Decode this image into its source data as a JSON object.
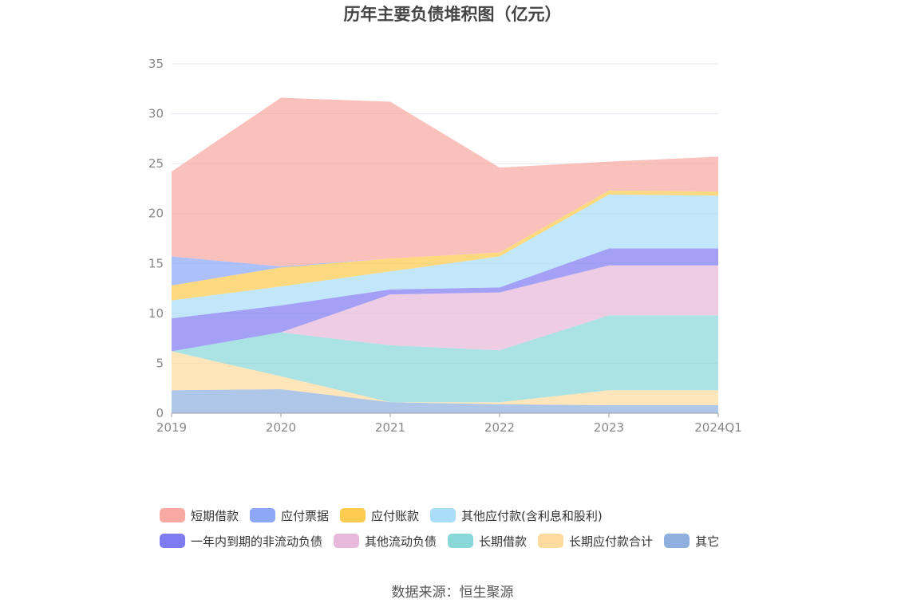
{
  "chart_data": {
    "type": "area",
    "stacked": true,
    "title": "历年主要负债堆积图（亿元）",
    "categories": [
      "2019",
      "2020",
      "2021",
      "2022",
      "2023",
      "2024Q1"
    ],
    "ylim": [
      0,
      35
    ],
    "yticks": [
      "0",
      "5",
      "10",
      "15",
      "20",
      "25",
      "30",
      "35"
    ],
    "grid": true,
    "legend_position": "bottom",
    "series": [
      {
        "name": "其它",
        "color": "#8FB0DE",
        "values": [
          2.3,
          2.4,
          1.1,
          0.9,
          0.8,
          0.8
        ]
      },
      {
        "name": "长期应付款合计",
        "color": "#FDDBA0",
        "values": [
          3.9,
          1.3,
          0.0,
          0.2,
          1.5,
          1.5
        ]
      },
      {
        "name": "长期借款",
        "color": "#8AD7D8",
        "values": [
          0.0,
          4.4,
          5.7,
          5.2,
          7.5,
          7.5
        ]
      },
      {
        "name": "其他流动负债",
        "color": "#E8B9DA",
        "values": [
          0.0,
          0.0,
          5.1,
          5.8,
          5.0,
          5.0
        ]
      },
      {
        "name": "一年内到期的非流动负债",
        "color": "#7F7CF2",
        "values": [
          3.3,
          2.7,
          0.5,
          0.5,
          1.7,
          1.7
        ]
      },
      {
        "name": "其他应付款(含利息和股利)",
        "color": "#AADEF8",
        "values": [
          1.8,
          1.9,
          1.8,
          3.1,
          5.4,
          5.3
        ]
      },
      {
        "name": "应付账款",
        "color": "#FDCB4F",
        "values": [
          1.5,
          1.9,
          1.3,
          0.4,
          0.4,
          0.4
        ]
      },
      {
        "name": "应付票据",
        "color": "#8CA8F6",
        "values": [
          2.9,
          0.1,
          0.0,
          0.0,
          0.0,
          0.0
        ]
      },
      {
        "name": "短期借款",
        "color": "#F8A9A2",
        "values": [
          8.5,
          16.9,
          15.7,
          8.5,
          2.9,
          3.5
        ]
      }
    ]
  },
  "legend": {
    "row1": [
      {
        "name": "短期借款",
        "color": "#F8A9A2"
      },
      {
        "name": "应付票据",
        "color": "#8CA8F6"
      },
      {
        "name": "应付账款",
        "color": "#FDCB4F"
      },
      {
        "name": "其他应付款(含利息和股利)",
        "color": "#AADEF8"
      }
    ],
    "row2": [
      {
        "name": "一年内到期的非流动负债",
        "color": "#7F7CF2"
      },
      {
        "name": "其他流动负债",
        "color": "#E8B9DA"
      },
      {
        "name": "长期借款",
        "color": "#8AD7D8"
      },
      {
        "name": "长期应付款合计",
        "color": "#FDDBA0"
      },
      {
        "name": "其它",
        "color": "#8FB0DE"
      }
    ]
  },
  "source": "数据来源：恒生聚源"
}
